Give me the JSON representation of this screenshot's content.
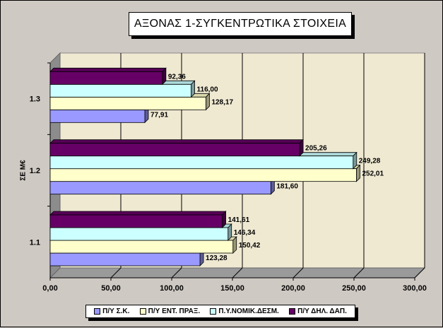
{
  "chart_data": {
    "type": "bar",
    "orientation": "horizontal",
    "title": "ΑΞΟΝΑΣ 1-ΣΥΓΚΕΝΤΡΩΤΙΚΑ ΣΤΟΙΧΕΙΑ",
    "ylabel": "ΣΕ Μ€",
    "xlabel": "",
    "categories": [
      "1.1",
      "1.2",
      "1.3"
    ],
    "xlim": [
      0,
      300
    ],
    "x_ticks": [
      "0,00",
      "50,00",
      "100,00",
      "150,00",
      "200,00",
      "250,00",
      "300,00"
    ],
    "grid": true,
    "legend_position": "bottom",
    "series": [
      {
        "name": "Π/Υ Σ.Κ.",
        "color": "#9999ff",
        "values": [
          123.28,
          181.6,
          77.91
        ],
        "labels": [
          "123,28",
          "181,60",
          "77,91"
        ]
      },
      {
        "name": "Π/Υ ΕΝΤ. ΠΡΑΞ.",
        "color": "#ffffcc",
        "values": [
          150.42,
          252.01,
          128.17
        ],
        "labels": [
          "150,42",
          "252,01",
          "128,17"
        ]
      },
      {
        "name": "Π.Υ.ΝΟΜΙΚ.ΔΕΣΜ.",
        "color": "#ccffff",
        "values": [
          146.34,
          249.28,
          116.0
        ],
        "labels": [
          "146,34",
          "249,28",
          "116,00"
        ]
      },
      {
        "name": "Π/Υ ΔΗΛ. ΔΑΠ.",
        "color": "#660066",
        "values": [
          141.61,
          205.26,
          92.36
        ],
        "labels": [
          "141,61",
          "205,26",
          "92,36"
        ]
      }
    ]
  }
}
